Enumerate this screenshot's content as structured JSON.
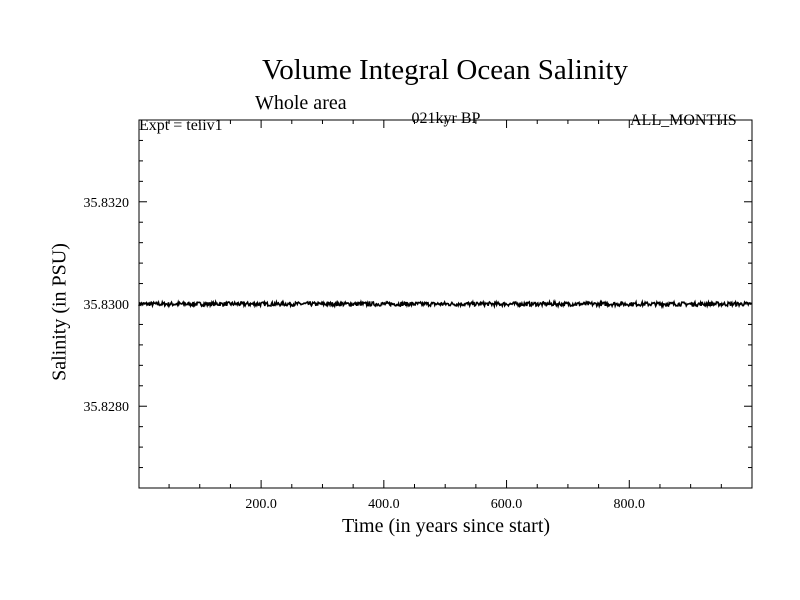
{
  "chart_data": {
    "type": "line",
    "title": "Volume Integral Ocean Salinity",
    "subtitle": "Whole area",
    "annotations": {
      "left": "Expt = teiiv1",
      "center": "021kyr BP",
      "right": "ALL_MONTHS"
    },
    "xlabel": "Time (in years since start)",
    "ylabel": "Salinity (in PSU)",
    "xlim": [
      1,
      1000
    ],
    "ylim": [
      35.8264,
      35.8336
    ],
    "xticks": [
      200,
      400,
      600,
      800
    ],
    "xtick_labels": [
      "200.0",
      "400.0",
      "600.0",
      "800.0"
    ],
    "yticks": [
      35.828,
      35.83,
      35.832
    ],
    "ytick_labels": [
      "35.8280",
      "35.8300",
      "35.8320"
    ],
    "grid": false,
    "series": [
      {
        "color": "#000000",
        "x": [
          1,
          1000
        ],
        "y": [
          35.83,
          35.83
        ],
        "noise_amplitude": 4e-05
      }
    ]
  }
}
